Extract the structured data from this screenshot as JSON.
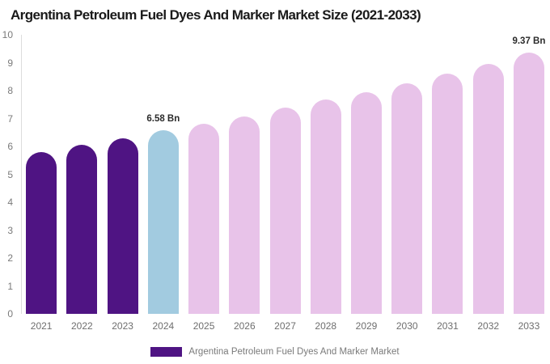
{
  "title": "Argentina Petroleum Fuel Dyes And Marker Market Size (2021-2033)",
  "colors": {
    "purple": "#4F1483",
    "blue": "#A2CBE0",
    "pink": "#E8C3E9",
    "axis_line": "#DCDCDC",
    "tick_text": "#7A7A7A",
    "x_label_text": "#6E6E6E",
    "value_label_text": "#2B2B2B",
    "legend_text": "#7A7A7A",
    "title_text": "#1A1A1A"
  },
  "chart_data": {
    "type": "bar",
    "title": "Argentina Petroleum Fuel Dyes And Marker Market Size (2021-2033)",
    "categories": [
      "2021",
      "2022",
      "2023",
      "2024",
      "2025",
      "2026",
      "2027",
      "2028",
      "2029",
      "2030",
      "2031",
      "2032",
      "2033"
    ],
    "values": [
      5.8,
      6.05,
      6.3,
      6.58,
      6.8,
      7.08,
      7.38,
      7.67,
      7.93,
      8.25,
      8.61,
      8.97,
      9.37
    ],
    "bar_colors": [
      "#4F1483",
      "#4F1483",
      "#4F1483",
      "#A2CBE0",
      "#E8C3E9",
      "#E8C3E9",
      "#E8C3E9",
      "#E8C3E9",
      "#E8C3E9",
      "#E8C3E9",
      "#E8C3E9",
      "#E8C3E9",
      "#E8C3E9"
    ],
    "value_labels": {
      "2024": "6.58 Bn",
      "2033": "9.37 Bn"
    },
    "xlabel": "",
    "ylabel": "",
    "ylim": [
      0,
      10
    ],
    "y_ticks": [
      0,
      1,
      2,
      3,
      4,
      5,
      6,
      7,
      8,
      9,
      10
    ],
    "grid": false,
    "legend": {
      "label": "Argentina Petroleum Fuel Dyes And Marker Market",
      "swatch_color": "#4F1483",
      "position": "bottom-center"
    }
  }
}
